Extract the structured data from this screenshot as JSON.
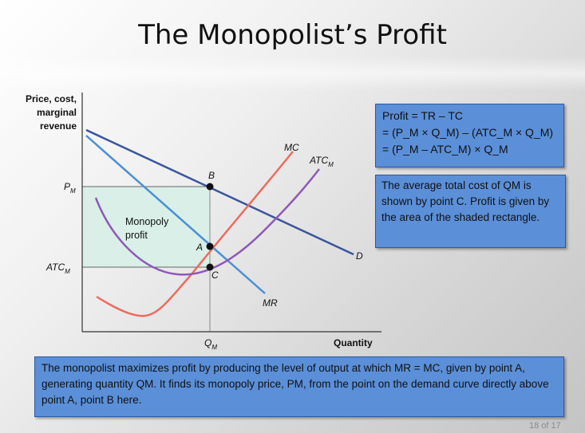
{
  "slide": {
    "title": "The Monopolist’s Profit",
    "footer": "18 of 17"
  },
  "diagram": {
    "y_axis_label_lines": [
      "Price, cost,",
      "marginal",
      "revenue"
    ],
    "x_axis_label": "Quantity",
    "tick_labels": {
      "pm": "P",
      "pm_sub": "M",
      "atcm": "ATC",
      "atcm_sub": "M",
      "qm": "Q",
      "qm_sub": "M"
    },
    "curve_labels": {
      "mc": "MC",
      "atc": "ATC",
      "atc_sub": "M",
      "d": "D",
      "mr": "MR"
    },
    "point_labels": {
      "a": "A",
      "b": "B",
      "c": "C"
    },
    "region_label_lines": [
      "Monopoly",
      "profit"
    ],
    "colors": {
      "demand": "#3b549e",
      "mr": "#4a8fd6",
      "mc": "#ee6b5f",
      "atc": "#8e59b7",
      "profit_area": "#d9efe8",
      "box_fill": "#5b8fd8"
    }
  },
  "profit_box": {
    "line1": "Profit = TR – TC",
    "line2": "= (P_M × Q_M) – (ATC_M × Q_M)",
    "line3": "= (P_M – ATC_M) × Q_M"
  },
  "avg_box": {
    "text": "The average total cost of QM is shown by point C. Profit is given by the area of the shaded rectangle."
  },
  "bottom_box": {
    "text": "The monopolist maximizes profit by producing the level of output at which MR = MC, given by point A, generating quantity QM. It finds its monopoly price, PM, from the point on the demand curve directly above point A, point B here."
  }
}
